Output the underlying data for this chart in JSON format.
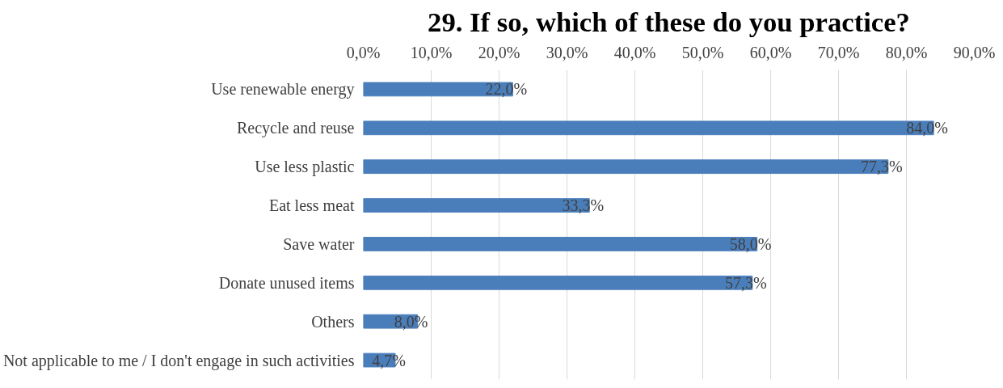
{
  "chart_data": {
    "type": "bar",
    "orientation": "horizontal",
    "title": "29. If so, which of these do you practice?",
    "categories": [
      "Use renewable energy",
      "Recycle and reuse",
      "Use less plastic",
      "Eat less meat",
      "Save water",
      "Donate unused items",
      "Others",
      "Not applicable to me / I don't engage in such activities"
    ],
    "values": [
      22.0,
      84.0,
      77.3,
      33.3,
      58.0,
      57.3,
      8.0,
      4.7
    ],
    "value_labels": [
      "22,0%",
      "84,0%",
      "77,3%",
      "33,3%",
      "58,0%",
      "57,3%",
      "8,0%",
      "4,7%"
    ],
    "color": "#4a7ebb",
    "xlim": [
      0,
      90
    ],
    "xticks": [
      {
        "value": 0,
        "label": "0,0%"
      },
      {
        "value": 10,
        "label": "10,0%"
      },
      {
        "value": 20,
        "label": "20,0%"
      },
      {
        "value": 30,
        "label": "30,0%"
      },
      {
        "value": 40,
        "label": "40,0%"
      },
      {
        "value": 50,
        "label": "50,0%"
      },
      {
        "value": 60,
        "label": "60,0%"
      },
      {
        "value": 70,
        "label": "70,0%"
      },
      {
        "value": 80,
        "label": "80,0%"
      },
      {
        "value": 90,
        "label": "90,0%"
      }
    ],
    "grid": "x"
  }
}
